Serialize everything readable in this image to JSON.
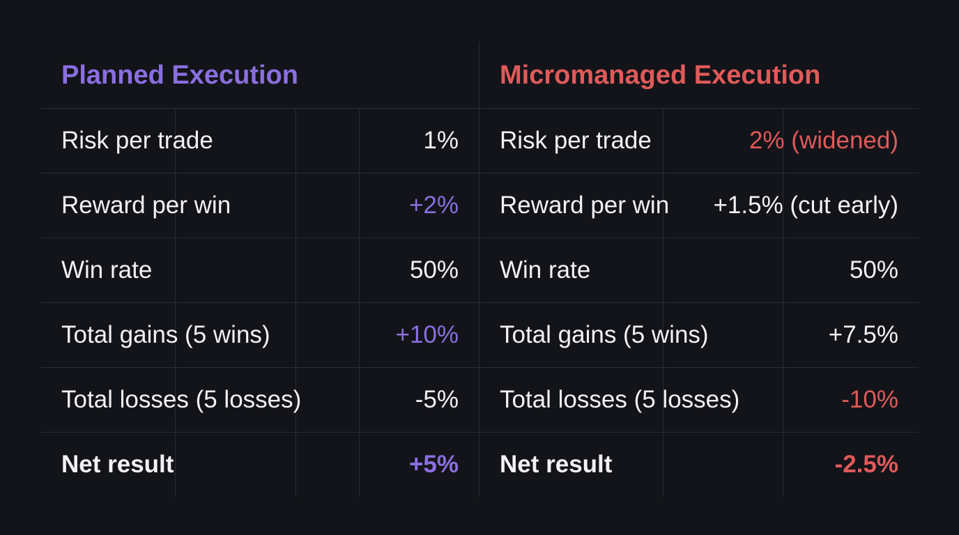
{
  "colors": {
    "background": "#131419",
    "grid_line": "#2a2c34",
    "text": "#f2f2f4",
    "accent_purple": "#8a6fe0",
    "accent_red": "#e05a5a"
  },
  "planned": {
    "title": "Planned Execution",
    "rows": [
      {
        "label": "Risk per trade",
        "value": "1%",
        "tone": "neutral"
      },
      {
        "label": "Reward per win",
        "value": "+2%",
        "tone": "purple"
      },
      {
        "label": "Win rate",
        "value": "50%",
        "tone": "neutral"
      },
      {
        "label": "Total gains (5 wins)",
        "value": "+10%",
        "tone": "purple"
      },
      {
        "label": "Total losses (5 losses)",
        "value": "-5%",
        "tone": "neutral"
      },
      {
        "label": "Net result",
        "value": "+5%",
        "tone": "purple"
      }
    ]
  },
  "micromanaged": {
    "title": "Micromanaged Execution",
    "rows": [
      {
        "label": "Risk per trade",
        "value": "2% (widened)",
        "tone": "red"
      },
      {
        "label": "Reward per win",
        "value": "+1.5% (cut early)",
        "tone": "neutral"
      },
      {
        "label": "Win rate",
        "value": "50%",
        "tone": "neutral"
      },
      {
        "label": "Total gains (5 wins)",
        "value": "+7.5%",
        "tone": "neutral"
      },
      {
        "label": "Total losses (5 losses)",
        "value": "-10%",
        "tone": "red"
      },
      {
        "label": "Net result",
        "value": "-2.5%",
        "tone": "red"
      }
    ]
  }
}
